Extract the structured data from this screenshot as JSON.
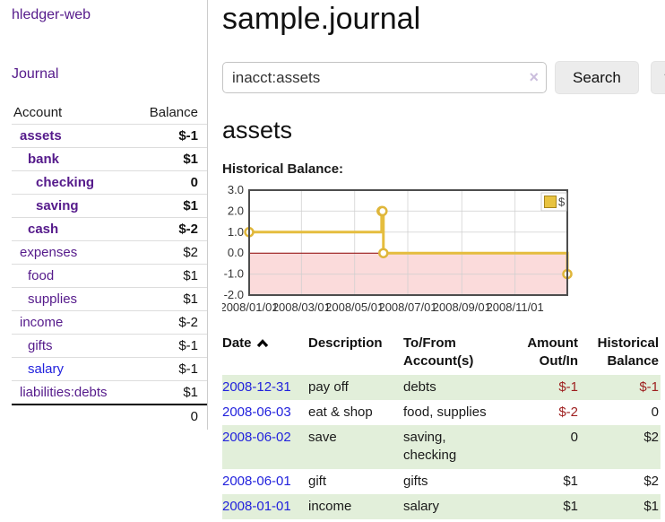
{
  "sidebar": {
    "brand": "hledger-web",
    "nav": {
      "journal": "Journal"
    },
    "account_tree": {
      "headers": {
        "account": "Account",
        "balance": "Balance"
      },
      "rows": [
        {
          "label": "assets",
          "indent": 1,
          "bold": true,
          "link_color": "purple",
          "balance": "$-1",
          "balance_class": "neg"
        },
        {
          "label": "bank",
          "indent": 2,
          "bold": true,
          "link_color": "purple",
          "balance": "$1",
          "balance_class": ""
        },
        {
          "label": "checking",
          "indent": 3,
          "bold": true,
          "link_color": "purple",
          "balance": "0",
          "balance_class": ""
        },
        {
          "label": "saving",
          "indent": 3,
          "bold": true,
          "link_color": "purple",
          "balance": "$1",
          "balance_class": ""
        },
        {
          "label": "cash",
          "indent": 2,
          "bold": true,
          "link_color": "purple",
          "balance": "$-2",
          "balance_class": "neg"
        },
        {
          "label": "expenses",
          "indent": 1,
          "bold": false,
          "link_color": "purple",
          "balance": "$2",
          "balance_class": ""
        },
        {
          "label": "food",
          "indent": 2,
          "bold": false,
          "link_color": "purple",
          "balance": "$1",
          "balance_class": ""
        },
        {
          "label": "supplies",
          "indent": 2,
          "bold": false,
          "link_color": "purple",
          "balance": "$1",
          "balance_class": ""
        },
        {
          "label": "income",
          "indent": 1,
          "bold": false,
          "link_color": "purple",
          "balance": "$-2",
          "balance_class": "negsoft"
        },
        {
          "label": "gifts",
          "indent": 2,
          "bold": false,
          "link_color": "purple",
          "balance": "$-1",
          "balance_class": "negsoft"
        },
        {
          "label": "salary",
          "indent": 2,
          "bold": false,
          "link_color": "blue",
          "balance": "$-1",
          "balance_class": "negsoft"
        },
        {
          "label": "liabilities:debts",
          "indent": 1,
          "bold": false,
          "link_color": "purple",
          "balance": "$1",
          "balance_class": ""
        }
      ],
      "total": "0"
    }
  },
  "header": {
    "title": "sample.journal"
  },
  "search": {
    "value": "inacct:assets",
    "clear_icon": "×",
    "button": "Search",
    "help_button": "?"
  },
  "account_page": {
    "title": "assets",
    "chart_label": "Historical Balance:"
  },
  "chart_data": {
    "type": "line",
    "step": true,
    "title": "Historical Balance:",
    "series": [
      {
        "name": "$",
        "color": "#e5bd3e",
        "points": [
          [
            "2008-01-01",
            1
          ],
          [
            "2008-06-01",
            2
          ],
          [
            "2008-06-02",
            2
          ],
          [
            "2008-06-03",
            0
          ],
          [
            "2008-12-31",
            -1
          ]
        ]
      }
    ],
    "x_range": [
      "2008-01-01",
      "2008-12-31"
    ],
    "x_tick_labels": [
      "2008/01/01",
      "2008/03/01",
      "2008/05/01",
      "2008/07/01",
      "2008/09/01",
      "2008/11/01"
    ],
    "y_tick_labels": [
      "3.0",
      "2.0",
      "1.0",
      "0.0",
      "-1.0",
      "-2.0"
    ],
    "y_ticks": [
      3,
      2,
      1,
      0,
      -1,
      -2
    ],
    "ylim": [
      -2,
      3
    ],
    "grid": true,
    "legend_position": "top-right",
    "legend_label": "$",
    "colors": {
      "line": "#e5bd3e",
      "marker_fill": "#ffffff",
      "marker_stroke": "#dfb63a",
      "negative_region_fill": "#fbdbdb",
      "zero_line": "#8b0000",
      "grid": "#cfcfcf",
      "border": "#4d4d4d",
      "legend_square_fill": "#e8c340",
      "legend_square_stroke": "#a8861c"
    }
  },
  "transactions": {
    "headers": {
      "date": "Date",
      "description": "Description",
      "accounts": "To/From Account(s)",
      "amount": "Amount Out/In",
      "balance": "Historical Balance"
    },
    "rows": [
      {
        "date": "2008-12-31",
        "description": "pay off",
        "accounts": "debts",
        "amount": "$-1",
        "amount_class": "neg",
        "balance": "$-1",
        "balance_class": "neg",
        "green": true
      },
      {
        "date": "2008-06-03",
        "description": "eat & shop",
        "accounts": "food, supplies",
        "amount": "$-2",
        "amount_class": "neg",
        "balance": "0",
        "balance_class": "",
        "green": false
      },
      {
        "date": "2008-06-02",
        "description": "save",
        "accounts": "saving, checking",
        "amount": "0",
        "amount_class": "",
        "balance": "$2",
        "balance_class": "",
        "green": true
      },
      {
        "date": "2008-06-01",
        "description": "gift",
        "accounts": "gifts",
        "amount": "$1",
        "amount_class": "",
        "balance": "$2",
        "balance_class": "",
        "green": false
      },
      {
        "date": "2008-01-01",
        "description": "income",
        "accounts": "salary",
        "amount": "$1",
        "amount_class": "",
        "balance": "$1",
        "balance_class": "",
        "green": true
      }
    ]
  },
  "colors": {
    "link_purple": "#551a8b",
    "link_blue": "#2222dd",
    "negative_strong": "#9e1f1f",
    "negative_soft": "#c28383",
    "row_stripe_green": "#e2efda"
  }
}
